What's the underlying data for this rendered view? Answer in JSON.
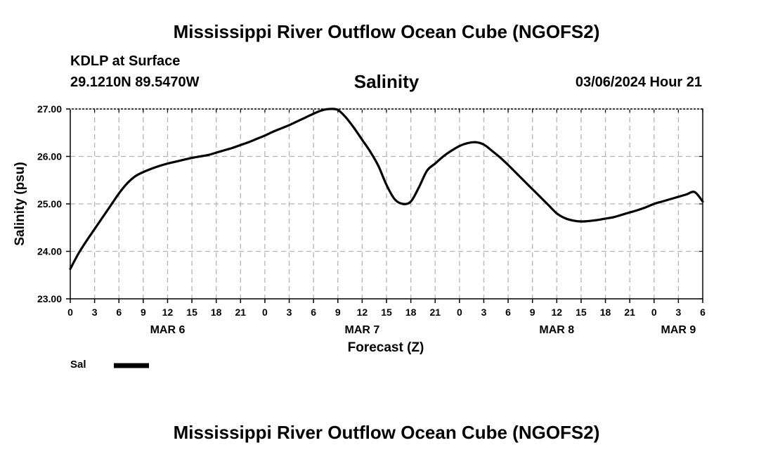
{
  "header": {
    "title_top": "Mississippi River Outflow Ocean Cube (NGOFS2)",
    "station": "KDLP at Surface",
    "coords": "29.1210N  89.5470W",
    "valid_time": "03/06/2024 Hour 21",
    "title_bottom": "Mississippi River Outflow Ocean Cube (NGOFS2)"
  },
  "legend": {
    "label": "Sal"
  },
  "colors": {
    "line": "#000000",
    "grid": "#b4b4b4"
  },
  "chart_data": {
    "type": "line",
    "title": "Salinity",
    "xlabel": "Forecast (Z)",
    "ylabel": "Salinity (psu)",
    "x_unit": "hours since 00Z MAR 6",
    "xlim": [
      0,
      78
    ],
    "ylim": [
      23.0,
      27.0
    ],
    "grid": true,
    "legend_position": "bottom-left",
    "yticks": [
      23.0,
      24.0,
      25.0,
      26.0,
      27.0
    ],
    "ytick_labels": [
      "23.00",
      "24.00",
      "25.00",
      "26.00",
      "27.00"
    ],
    "xticks": [
      0,
      3,
      6,
      9,
      12,
      15,
      18,
      21,
      24,
      27,
      30,
      33,
      36,
      39,
      42,
      45,
      48,
      51,
      54,
      57,
      60,
      63,
      66,
      69,
      72,
      75,
      78
    ],
    "xtick_labels": [
      "0",
      "3",
      "6",
      "9",
      "12",
      "15",
      "18",
      "21",
      "0",
      "3",
      "6",
      "9",
      "12",
      "15",
      "18",
      "21",
      "0",
      "3",
      "6",
      "9",
      "12",
      "15",
      "18",
      "21",
      "0",
      "3",
      "6"
    ],
    "day_labels": [
      {
        "x": 12,
        "text": "MAR 6"
      },
      {
        "x": 36,
        "text": "MAR 7"
      },
      {
        "x": 60,
        "text": "MAR 8"
      },
      {
        "x": 75,
        "text": "MAR 9"
      }
    ],
    "series": [
      {
        "name": "Sal",
        "x": [
          0,
          1,
          2,
          3,
          4,
          5,
          6,
          7,
          8,
          9,
          10,
          11,
          12,
          13,
          14,
          15,
          16,
          17,
          18,
          19,
          20,
          21,
          22,
          23,
          24,
          25,
          26,
          27,
          28,
          29,
          30,
          31,
          32,
          33,
          34,
          35,
          36,
          37,
          38,
          39,
          40,
          41,
          42,
          43,
          44,
          45,
          46,
          47,
          48,
          49,
          50,
          51,
          52,
          53,
          54,
          55,
          56,
          57,
          58,
          59,
          60,
          61,
          62,
          63,
          64,
          65,
          66,
          67,
          68,
          69,
          70,
          71,
          72,
          73,
          74,
          75,
          76,
          77,
          78
        ],
        "values": [
          23.63,
          23.95,
          24.22,
          24.47,
          24.72,
          24.97,
          25.22,
          25.43,
          25.58,
          25.67,
          25.74,
          25.8,
          25.85,
          25.89,
          25.93,
          25.97,
          26.0,
          26.03,
          26.08,
          26.13,
          26.18,
          26.24,
          26.3,
          26.37,
          26.44,
          26.52,
          26.59,
          26.66,
          26.74,
          26.82,
          26.9,
          26.97,
          27.0,
          26.98,
          26.82,
          26.6,
          26.35,
          26.1,
          25.8,
          25.4,
          25.1,
          25.0,
          25.05,
          25.35,
          25.7,
          25.85,
          26.0,
          26.12,
          26.22,
          26.28,
          26.3,
          26.25,
          26.12,
          25.98,
          25.82,
          25.65,
          25.48,
          25.31,
          25.14,
          24.97,
          24.8,
          24.7,
          24.65,
          24.63,
          24.64,
          24.66,
          24.69,
          24.72,
          24.77,
          24.82,
          24.87,
          24.93,
          25.0,
          25.05,
          25.1,
          25.15,
          25.2,
          25.25,
          25.05
        ]
      }
    ]
  }
}
